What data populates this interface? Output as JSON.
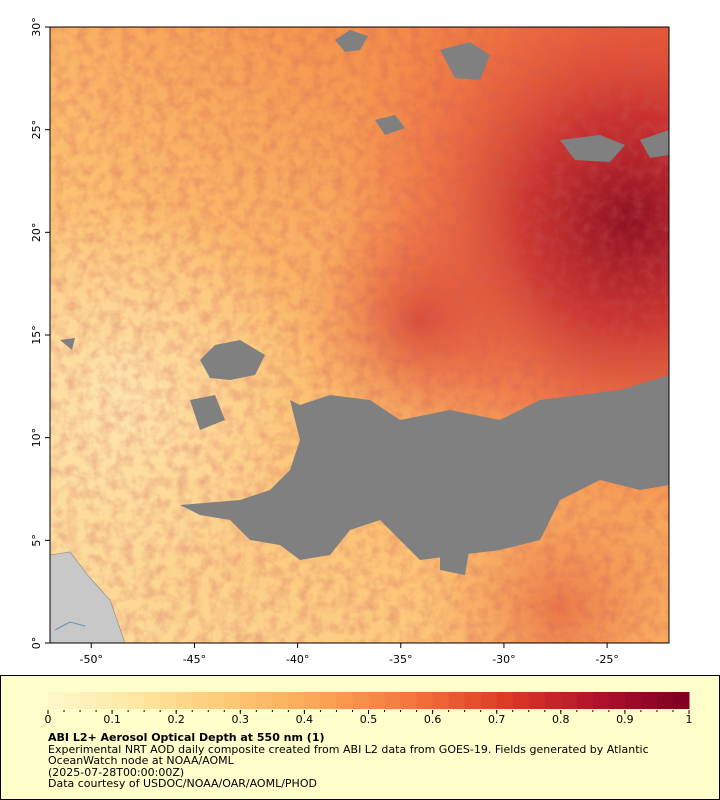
{
  "map": {
    "xlim": [
      -52,
      -22
    ],
    "ylim": [
      0,
      30
    ],
    "xticks": [
      {
        "value": -50,
        "label": "-50°"
      },
      {
        "value": -45,
        "label": "-45°"
      },
      {
        "value": -40,
        "label": "-40°"
      },
      {
        "value": -35,
        "label": "-35°"
      },
      {
        "value": -30,
        "label": "-30°"
      },
      {
        "value": -25,
        "label": "-25°"
      }
    ],
    "yticks": [
      {
        "value": 0,
        "label": "0°"
      },
      {
        "value": 5,
        "label": "5°"
      },
      {
        "value": 10,
        "label": "10°"
      },
      {
        "value": 15,
        "label": "15°"
      },
      {
        "value": 20,
        "label": "20°"
      },
      {
        "value": 25,
        "label": "25°"
      },
      {
        "value": 30,
        "label": "30°"
      }
    ]
  },
  "colorbar": {
    "lim": [
      0,
      1
    ],
    "ticks": [
      0,
      0.1,
      0.2,
      0.3,
      0.4,
      0.5,
      0.6,
      0.7,
      0.8,
      0.9,
      1
    ],
    "levels": 40,
    "colors": [
      "#fff8cc",
      "#fee6a0",
      "#fdc874",
      "#fba455",
      "#f2743c",
      "#dd3a26",
      "#b0122a",
      "#7a0022"
    ]
  },
  "caption": {
    "title": "ABI L2+ Aerosol Optical Depth at 550 nm (1)",
    "description": "Experimental NRT AOD daily composite created from ABI L2 data from GOES-19. Fields generated by Atlantic OceanWatch node at NOAA/AOML",
    "time": "(2025-07-28T00:00:00Z)",
    "credit": "Data courtesy of USDOC/NOAA/OAR/AOML/PHOD"
  }
}
